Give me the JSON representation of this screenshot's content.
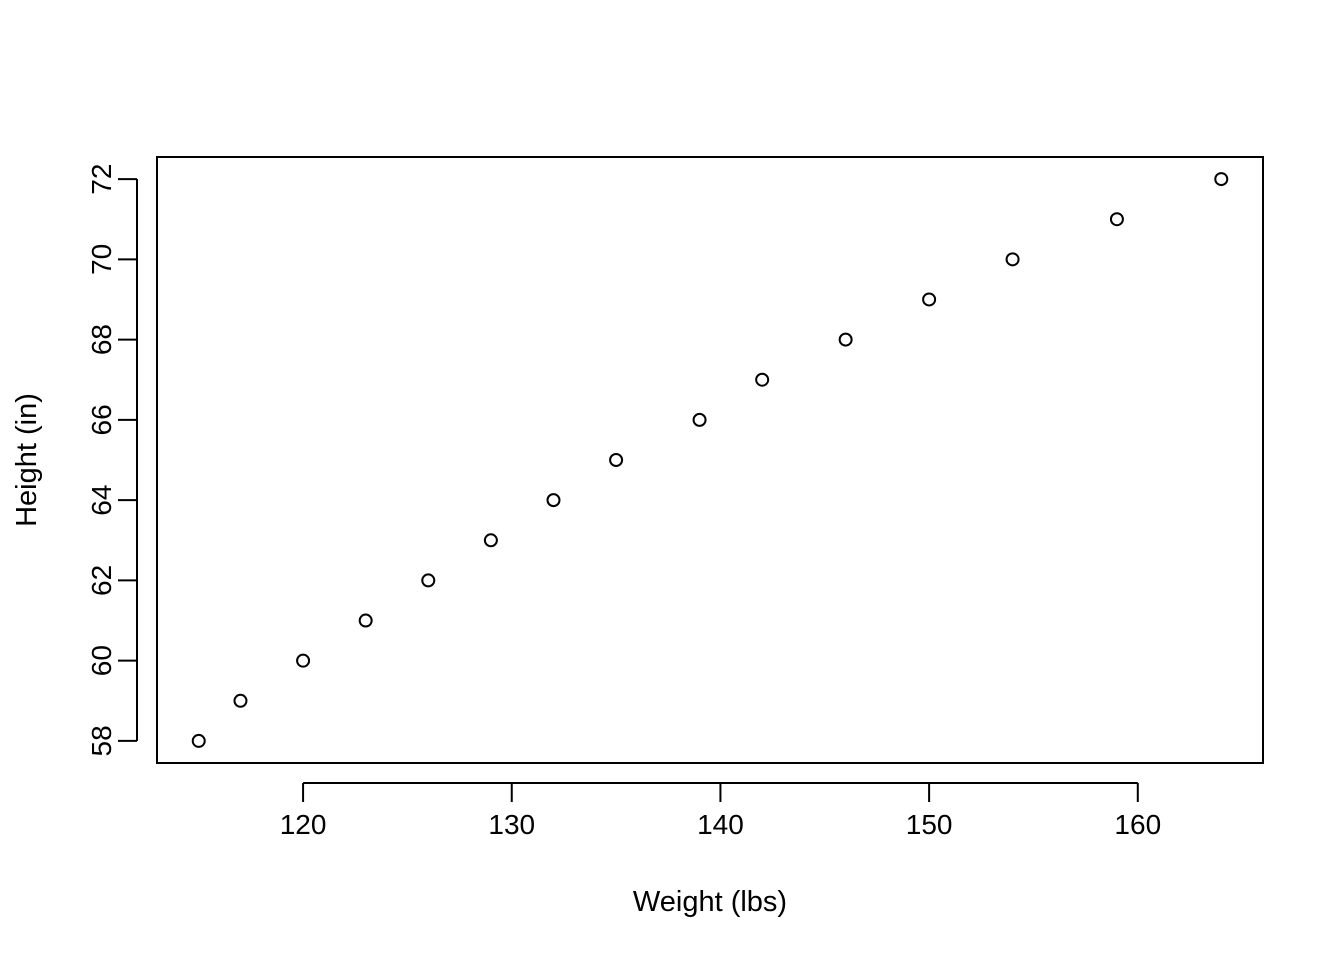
{
  "chart_data": {
    "type": "scatter",
    "title": "",
    "xlabel": "Weight (lbs)",
    "ylabel": "Height (in)",
    "xlim": [
      113,
      166
    ],
    "ylim": [
      57.45,
      72.55
    ],
    "xticks": [
      120,
      130,
      140,
      150,
      160
    ],
    "yticks": [
      58,
      60,
      62,
      64,
      66,
      68,
      70,
      72
    ],
    "grid": false,
    "legend": "none",
    "marker": "open-circle",
    "colors": {
      "axis": "#000000",
      "marker": "#000000",
      "background": "#ffffff"
    },
    "points": [
      {
        "x": 115,
        "y": 58
      },
      {
        "x": 117,
        "y": 59
      },
      {
        "x": 120,
        "y": 60
      },
      {
        "x": 123,
        "y": 61
      },
      {
        "x": 126,
        "y": 62
      },
      {
        "x": 129,
        "y": 63
      },
      {
        "x": 132,
        "y": 64
      },
      {
        "x": 135,
        "y": 65
      },
      {
        "x": 139,
        "y": 66
      },
      {
        "x": 142,
        "y": 67
      },
      {
        "x": 146,
        "y": 68
      },
      {
        "x": 150,
        "y": 69
      },
      {
        "x": 154,
        "y": 70
      },
      {
        "x": 159,
        "y": 71
      },
      {
        "x": 164,
        "y": 72
      }
    ]
  }
}
